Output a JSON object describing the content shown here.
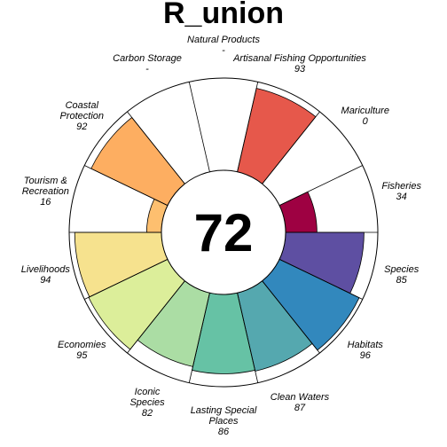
{
  "chart_data": {
    "type": "flower",
    "title": "R_union",
    "overall_score": "72",
    "max_value": 100,
    "petals": [
      {
        "name": "Artisanal Fishing Opportunities",
        "lines": [
          "Artisanal Fishing Opportunities"
        ],
        "score_label": "93",
        "value": 93,
        "color": "#E6584B"
      },
      {
        "name": "Mariculture",
        "lines": [
          "Mariculture"
        ],
        "score_label": "0",
        "value": 0,
        "color": "#F46D43"
      },
      {
        "name": "Fisheries",
        "lines": [
          "Fisheries"
        ],
        "score_label": "34",
        "value": 34,
        "color": "#9E0142"
      },
      {
        "name": "Species",
        "lines": [
          "Species"
        ],
        "score_label": "85",
        "value": 85,
        "color": "#5E4FA2"
      },
      {
        "name": "Habitats",
        "lines": [
          "Habitats"
        ],
        "score_label": "96",
        "value": 96,
        "color": "#3288BD"
      },
      {
        "name": "Clean Waters",
        "lines": [
          "Clean Waters"
        ],
        "score_label": "87",
        "value": 87,
        "color": "#55A8AF"
      },
      {
        "name": "Lasting Special Places",
        "lines": [
          "Lasting Special",
          "Places"
        ],
        "score_label": "86",
        "value": 86,
        "color": "#66C2A5"
      },
      {
        "name": "Iconic Species",
        "lines": [
          "Iconic",
          "Species"
        ],
        "score_label": "82",
        "value": 82,
        "color": "#ABDDA4"
      },
      {
        "name": "Economies",
        "lines": [
          "Economies"
        ],
        "score_label": "95",
        "value": 95,
        "color": "#DCEE9A"
      },
      {
        "name": "Livelihoods",
        "lines": [
          "Livelihoods"
        ],
        "score_label": "94",
        "value": 94,
        "color": "#F6E28E"
      },
      {
        "name": "Tourism & Recreation",
        "lines": [
          "Tourism &",
          "Recreation"
        ],
        "score_label": "16",
        "value": 16,
        "color": "#FDBF6F"
      },
      {
        "name": "Coastal Protection",
        "lines": [
          "Coastal",
          "Protection"
        ],
        "score_label": "92",
        "value": 92,
        "color": "#FDAE61"
      },
      {
        "name": "Carbon Storage",
        "lines": [
          "Carbon Storage"
        ],
        "score_label": "-",
        "value": null,
        "color": "#F0F0F0"
      },
      {
        "name": "Natural Products",
        "lines": [
          "Natural Products"
        ],
        "score_label": "-",
        "value": null,
        "color": "#F0F0F0"
      }
    ]
  }
}
